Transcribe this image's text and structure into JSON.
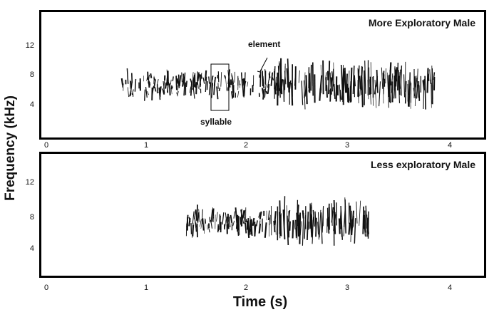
{
  "axes": {
    "y_label": "Frequency (kHz)",
    "x_label": "Time (s)",
    "y_ticks": [
      "12",
      "8",
      "4"
    ],
    "x_ticks": [
      "0",
      "1",
      "2",
      "3",
      "4"
    ]
  },
  "panels": [
    {
      "title": "More Exploratory Male"
    },
    {
      "title": "Less exploratory Male"
    }
  ],
  "annotations": {
    "element": "element",
    "syllable": "syllable"
  }
}
